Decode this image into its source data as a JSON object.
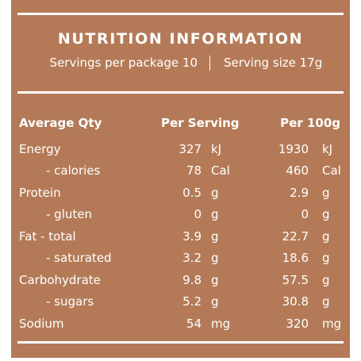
{
  "panel": {
    "title": "NUTRITION INFORMATION",
    "servings_per_package": "Servings per package 10",
    "serving_size": "Serving size 17g"
  },
  "table": {
    "headers": {
      "qty": "Average Qty",
      "per_serving": "Per Serving",
      "per_100g": "Per 100g"
    },
    "rows": [
      {
        "name": "Energy",
        "ps_value": "327",
        "ps_unit": "kJ",
        "h_value": "1930",
        "h_unit": "kJ"
      },
      {
        "name": "- calories",
        "ps_value": "78",
        "ps_unit": "Cal",
        "h_value": "460",
        "h_unit": "Cal"
      },
      {
        "name": "Protein",
        "ps_value": "0.5",
        "ps_unit": "g",
        "h_value": "2.9",
        "h_unit": "g"
      },
      {
        "name": "- gluten",
        "ps_value": "0",
        "ps_unit": "g",
        "h_value": "0",
        "h_unit": "g"
      },
      {
        "name": "Fat - total",
        "ps_value": "3.9",
        "ps_unit": "g",
        "h_value": "22.7",
        "h_unit": "g"
      },
      {
        "name": "- saturated",
        "ps_value": "3.2",
        "ps_unit": "g",
        "h_value": "18.6",
        "h_unit": "g"
      },
      {
        "name": "Carbohydrate",
        "ps_value": "9.8",
        "ps_unit": "g",
        "h_value": "57.5",
        "h_unit": "g"
      },
      {
        "name": "- sugars",
        "ps_value": "5.2",
        "ps_unit": "g",
        "h_value": "30.8",
        "h_unit": "g"
      },
      {
        "name": "Sodium",
        "ps_value": "54",
        "ps_unit": "mg",
        "h_value": "320",
        "h_unit": "mg"
      }
    ]
  },
  "colors": {
    "panel_background": "#b47a57",
    "text": "#ffffff"
  }
}
